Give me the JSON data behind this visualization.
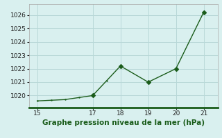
{
  "x": [
    15,
    15.5,
    16,
    16.5,
    17,
    17.5,
    18,
    19,
    20,
    21
  ],
  "y": [
    1019.6,
    1019.65,
    1019.7,
    1019.85,
    1020.0,
    1021.1,
    1022.2,
    1021.0,
    1022.0,
    1026.2
  ],
  "line_color": "#1a5c1a",
  "marker_x": [
    17,
    18,
    19,
    20,
    21
  ],
  "marker_y": [
    1020.0,
    1022.2,
    1021.0,
    1022.0,
    1026.2
  ],
  "bg_color": "#d9f0ef",
  "grid_color": "#b8d8d8",
  "bottom_bar_color": "#1a5c1a",
  "xlabel": "Graphe pression niveau de la mer (hPa)",
  "xlabel_color": "#1a5c1a",
  "xlabel_fontsize": 7.5,
  "xlim": [
    14.7,
    21.5
  ],
  "ylim": [
    1019.1,
    1026.8
  ],
  "xticks": [
    15,
    17,
    18,
    19,
    20,
    21
  ],
  "yticks": [
    1020,
    1021,
    1022,
    1023,
    1024,
    1025,
    1026
  ],
  "tick_fontsize": 6.5,
  "figsize": [
    3.2,
    2.0
  ],
  "dpi": 100
}
